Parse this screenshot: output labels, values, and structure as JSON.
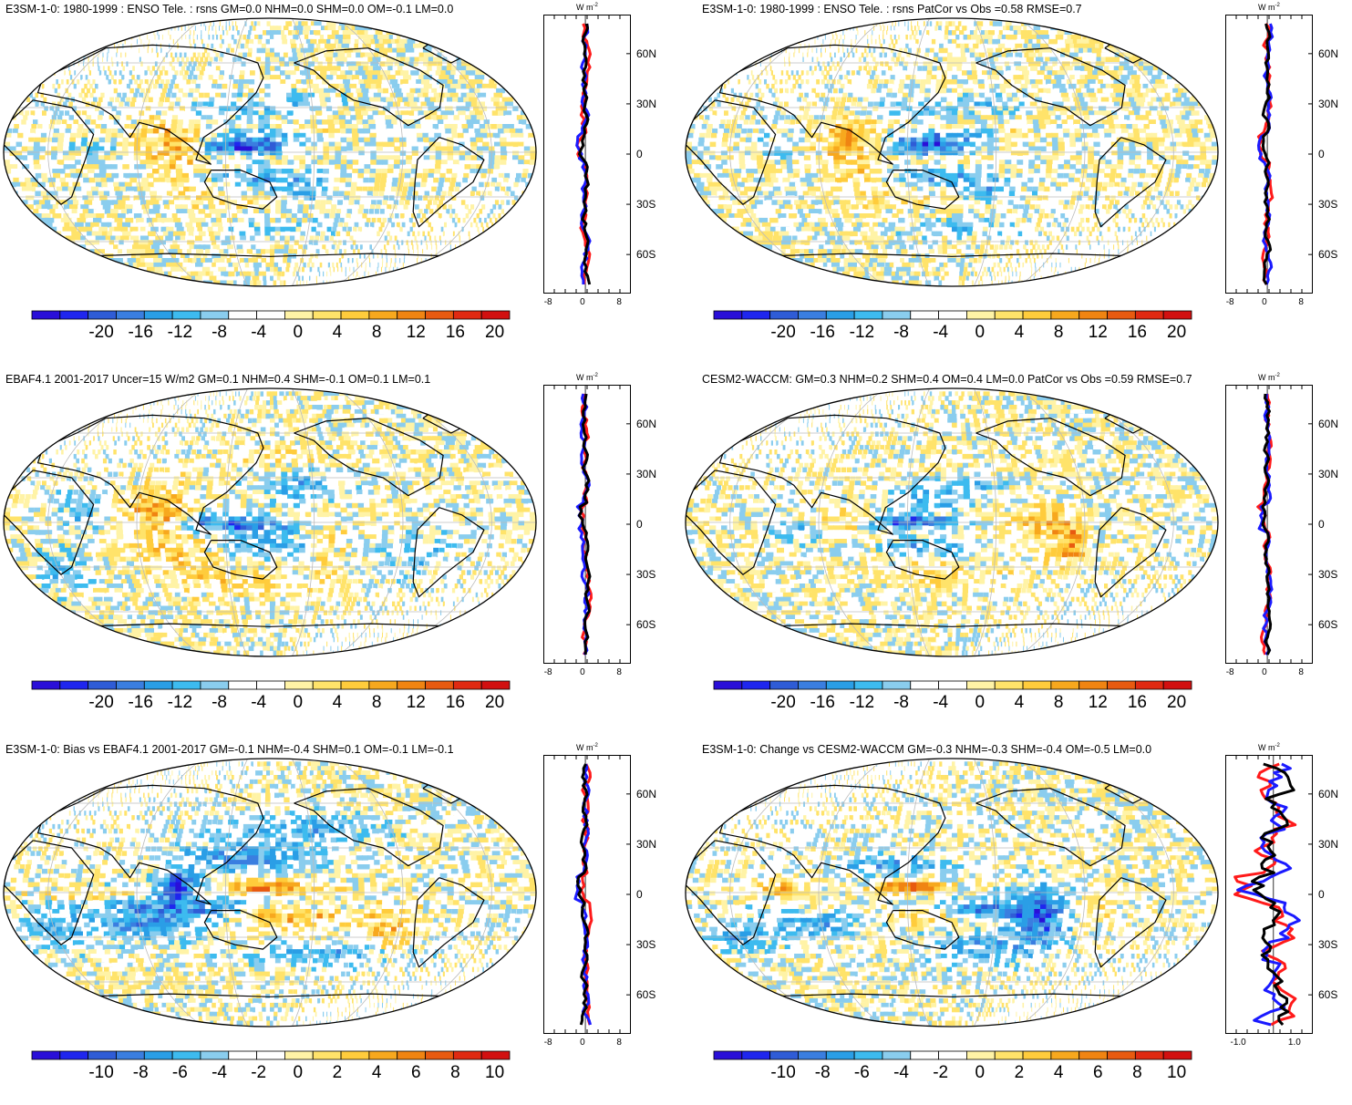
{
  "figure": {
    "panels": [
      {
        "id": "e3sm-tele",
        "title": "E3SM-1-0: 1980-1999 : ENSO Tele. : rsns GM=0.0 NHM=0.0 SHM=0.0 OM=-0.1 LM=0.0",
        "colorbar_labels": [
          "-20",
          "-16",
          "-12",
          "-8",
          "-4",
          "0",
          "4",
          "8",
          "12",
          "16",
          "20"
        ],
        "profile_xticks": [
          "-8",
          "0",
          "8"
        ],
        "profile_units": "W m",
        "profile_units_sup": "-2",
        "lat_labels": [
          "60N",
          "30N",
          "0",
          "30S",
          "60S"
        ]
      },
      {
        "id": "e3sm-patcor",
        "title": "E3SM-1-0: 1980-1999 : ENSO Tele. : rsns PatCor vs Obs =0.58 RMSE=0.7",
        "colorbar_labels": [
          "-20",
          "-16",
          "-12",
          "-8",
          "-4",
          "0",
          "4",
          "8",
          "12",
          "16",
          "20"
        ],
        "profile_xticks": [
          "-8",
          "0",
          "8"
        ],
        "profile_units": "W m",
        "profile_units_sup": "-2",
        "lat_labels": [
          "60N",
          "30N",
          "0",
          "30S",
          "60S"
        ]
      },
      {
        "id": "ebaf",
        "title": "EBAF4.1 2001-2017 Uncer=15 W/m2 GM=0.1 NHM=0.4 SHM=-0.1 OM=0.1 LM=0.1",
        "colorbar_labels": [
          "-20",
          "-16",
          "-12",
          "-8",
          "-4",
          "0",
          "4",
          "8",
          "12",
          "16",
          "20"
        ],
        "profile_xticks": [
          "-8",
          "0",
          "8"
        ],
        "profile_units": "W m",
        "profile_units_sup": "-2",
        "lat_labels": [
          "60N",
          "30N",
          "0",
          "30S",
          "60S"
        ]
      },
      {
        "id": "cesm2",
        "title": "CESM2-WACCM: GM=0.3 NHM=0.2 SHM=0.4 OM=0.4 LM=0.0 PatCor vs Obs =0.59 RMSE=0.7",
        "colorbar_labels": [
          "-20",
          "-16",
          "-12",
          "-8",
          "-4",
          "0",
          "4",
          "8",
          "12",
          "16",
          "20"
        ],
        "profile_xticks": [
          "-8",
          "0",
          "8"
        ],
        "profile_units": "W m",
        "profile_units_sup": "-2",
        "lat_labels": [
          "60N",
          "30N",
          "0",
          "30S",
          "60S"
        ]
      },
      {
        "id": "bias",
        "title": "E3SM-1-0: Bias vs EBAF4.1 2001-2017 GM=-0.1 NHM=-0.4 SHM=0.1 OM=-0.1 LM=-0.1",
        "colorbar_labels": [
          "-10",
          "-8",
          "-6",
          "-4",
          "-2",
          "0",
          "2",
          "4",
          "6",
          "8",
          "10"
        ],
        "profile_xticks": [
          "-8",
          "0",
          "8"
        ],
        "profile_units": "W m",
        "profile_units_sup": "-2",
        "lat_labels": [
          "60N",
          "30N",
          "0",
          "30S",
          "60S"
        ]
      },
      {
        "id": "change",
        "title": "E3SM-1-0: Change vs CESM2-WACCM GM=-0.3 NHM=-0.3 SHM=-0.4 OM=-0.5 LM=0.0",
        "colorbar_labels": [
          "-10",
          "-8",
          "-6",
          "-4",
          "-2",
          "0",
          "2",
          "4",
          "6",
          "8",
          "10"
        ],
        "profile_xticks": [
          "-1.0",
          "1.0"
        ],
        "profile_units": "W m",
        "profile_units_sup": "-2",
        "lat_labels": [
          "60N",
          "30N",
          "0",
          "30S",
          "60S"
        ]
      }
    ],
    "colors": {
      "palette": [
        "#2a0fd8",
        "#1f26ee",
        "#2f5cd6",
        "#3a7ee0",
        "#2a9ee6",
        "#3dbbef",
        "#8acdee",
        "#ffffff",
        "#ffffff",
        "#fff3a6",
        "#ffe36a",
        "#ffcc3c",
        "#f7a81e",
        "#f08412",
        "#e85a10",
        "#e02a12",
        "#d21010"
      ],
      "profile_red": "#ff1a1a",
      "profile_blue": "#1a1aff",
      "profile_black": "#000000",
      "ocean": "#ffffff",
      "grid": "#bbbbbb"
    }
  }
}
